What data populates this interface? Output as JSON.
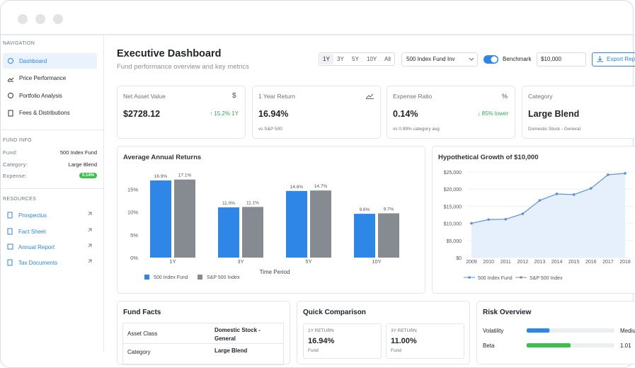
{
  "sidebar": {
    "nav_heading": "NAVIGATION",
    "nav": [
      "Dashboard",
      "Price Performance",
      "Portfolio Analysis",
      "Fees & Distributions"
    ],
    "fund_heading": "FUND INFO",
    "fund_info": [
      [
        "Fund:",
        "500 Index Fund"
      ],
      [
        "Category:",
        "Large Blend"
      ],
      [
        "Expense:",
        "0.14%"
      ]
    ],
    "resources_heading": "RESOURCES",
    "resources": [
      "Prospectus",
      "Fact Sheet",
      "Annual Report",
      "Tax Documents"
    ]
  },
  "header": {
    "title": "Executive Dashboard",
    "subtitle": "Fund performance overview and key metrics",
    "periods": [
      "1Y",
      "3Y",
      "5Y",
      "10Y",
      "All"
    ],
    "fund_select": "500 Index Fund Inv",
    "toggle": "Benchmark",
    "amount": "$10,000",
    "export": "Export Report"
  },
  "cards": [
    {
      "label": "Net Asset Value",
      "icon": "$",
      "value": "$2728.12",
      "change": "↑ 15.2% 1Y"
    },
    {
      "label": "1 Year Return",
      "value": "16.94%",
      "note": "vs S&P 500"
    },
    {
      "label": "Expense Ratio",
      "icon": "%",
      "value": "0.14%",
      "change": "↓ 85% lower",
      "note": "vs 0.99% category avg"
    },
    {
      "label": "Category",
      "value": "Large Blend",
      "note": "Domestic Stock - General"
    }
  ],
  "bar_chart": {
    "type": "bar",
    "title": "Average Annual Returns",
    "x_label": "Time Period",
    "categories": [
      "1Y",
      "3Y",
      "5Y",
      "10Y"
    ],
    "series": [
      {
        "name": "500 Index Fund",
        "color": "#2e86e6",
        "values": [
          16.9,
          11.0,
          14.6,
          9.6
        ],
        "value_labels": [
          "16.9%",
          "11.0%",
          "14.6%",
          "9.6%"
        ]
      },
      {
        "name": "S&P 500 Index",
        "color": "#868b91",
        "values": [
          17.1,
          11.1,
          14.7,
          9.7
        ],
        "value_labels": [
          "17.1%",
          "11.1%",
          "14.7%",
          "9.7%"
        ]
      }
    ],
    "ylim": [
      0,
      20
    ],
    "yticks": [
      {
        "value": 0,
        "label": "0%"
      },
      {
        "value": 5,
        "label": "5%"
      },
      {
        "value": 10,
        "label": "10%"
      },
      {
        "value": 15,
        "label": "15%"
      }
    ]
  },
  "line_chart": {
    "type": "line",
    "title": "Hypothetical Growth of $10,000",
    "x": [
      2009,
      2010,
      2011,
      2012,
      2013,
      2014,
      2015,
      2016,
      2017,
      2018
    ],
    "xlim": [
      2009,
      2018
    ],
    "series": [
      {
        "name": "500 Index Fund",
        "color": "#5b8fd6",
        "values": [
          10000,
          11100,
          11200,
          12800,
          16700,
          18600,
          18400,
          20200,
          24200,
          24600
        ]
      },
      {
        "name": "S&P 500 Index",
        "color": "#868b91"
      }
    ],
    "ylim": [
      0,
      25000
    ],
    "yticks": [
      {
        "value": 0,
        "label": "$0"
      },
      {
        "value": 5000,
        "label": "$5,000"
      },
      {
        "value": 10000,
        "label": "$10,000"
      },
      {
        "value": 15000,
        "label": "$15,000"
      },
      {
        "value": 20000,
        "label": "$20,000"
      },
      {
        "value": 25000,
        "label": "$25,000"
      }
    ],
    "grid": true
  },
  "fund_facts": {
    "title": "Fund Facts",
    "rows": [
      [
        "Asset Class",
        "Domestic Stock - General"
      ],
      [
        "Category",
        "Large Blend"
      ]
    ]
  },
  "quick_comparison": {
    "title": "Quick Comparison",
    "items": [
      {
        "label": "1Y RETURN",
        "value": "16.94%",
        "sub": "Fund"
      },
      {
        "label": "3Y RETURN",
        "value": "11.00%",
        "sub": "Fund"
      }
    ]
  },
  "risk": {
    "title": "Risk Overview",
    "items": [
      {
        "label": "Volatility",
        "level": 26,
        "value": "Medium",
        "color": "#2e86e6"
      },
      {
        "label": "Beta",
        "level": 50,
        "value": "1.01",
        "color": "#3cc04a"
      }
    ]
  }
}
